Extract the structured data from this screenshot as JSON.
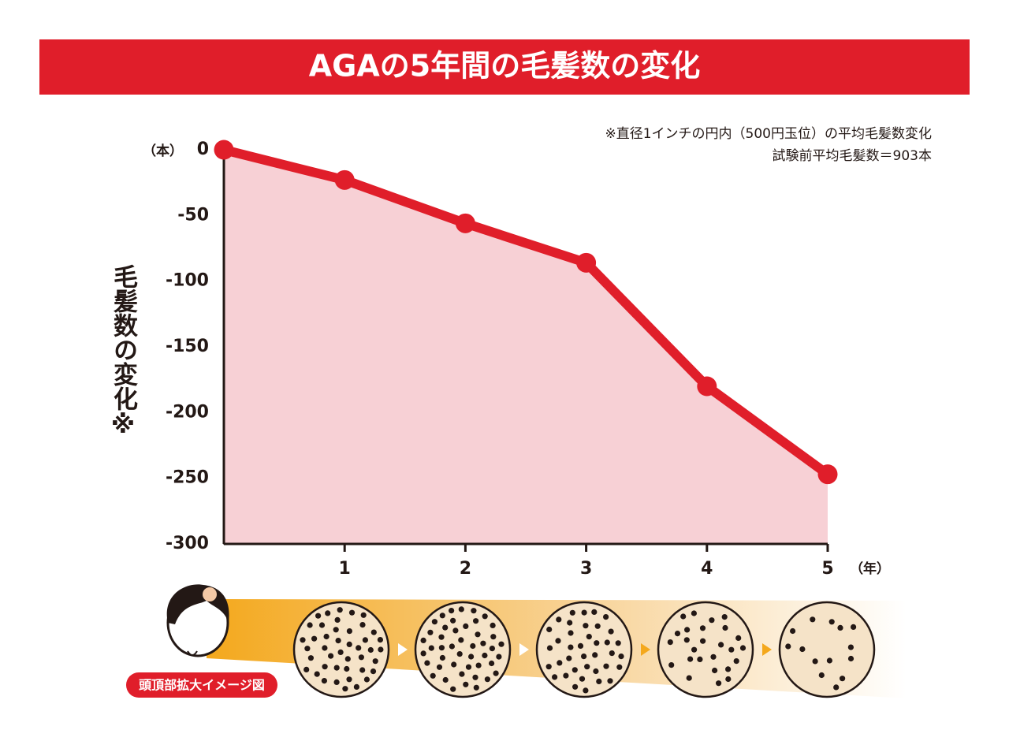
{
  "chart_data": {
    "type": "line",
    "title": "AGAの5年間の毛髪数の変化",
    "notes": [
      "※直径1インチの円内（500円玉位）の平均毛髪数変化",
      "試験前平均毛髪数＝903本"
    ],
    "y_label": "毛髪数の変化※",
    "y_unit": "（本）",
    "x_unit": "（年）",
    "x": [
      0,
      1,
      2,
      3,
      4,
      5
    ],
    "values": [
      0,
      -23,
      -56,
      -86,
      -180,
      -247
    ],
    "color": "#e01e2a",
    "area_color": "#f7d0d5",
    "xlim": [
      0,
      5
    ],
    "xticks": [
      1,
      2,
      3,
      4,
      5
    ],
    "ylim": [
      -300,
      0
    ],
    "yticks": [
      0,
      -50,
      -100,
      -150,
      -200,
      -250,
      -300
    ],
    "illustration_label": "頭頂部拡大イメージ図"
  }
}
